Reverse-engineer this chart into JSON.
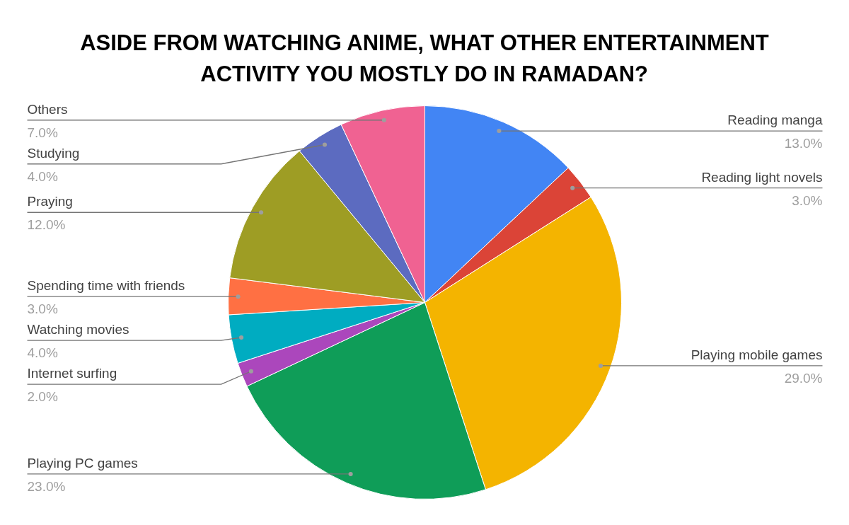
{
  "chart_data": {
    "type": "pie",
    "title": "ASIDE FROM WATCHING ANIME, WHAT OTHER ENTERTAINMENT ACTIVITY YOU MOSTLY DO IN RAMADAN?",
    "categories": [
      "Reading manga",
      "Reading light novels",
      "Playing mobile games",
      "Playing PC games",
      "Internet surfing",
      "Watching movies",
      "Spending time with friends",
      "Praying",
      "Studying",
      "Others"
    ],
    "values": [
      13,
      3,
      29,
      23,
      2,
      4,
      3,
      12,
      4,
      7
    ],
    "value_labels": [
      "13.0%",
      "3.0%",
      "29.0%",
      "23.0%",
      "2.0%",
      "4.0%",
      "3.0%",
      "12.0%",
      "4.0%",
      "7.0%"
    ],
    "colors": [
      "#4285f4",
      "#db4437",
      "#f4b400",
      "#0f9d58",
      "#ab47bc",
      "#00acc1",
      "#ff7043",
      "#9e9d24",
      "#5c6bc0",
      "#f06292"
    ]
  }
}
